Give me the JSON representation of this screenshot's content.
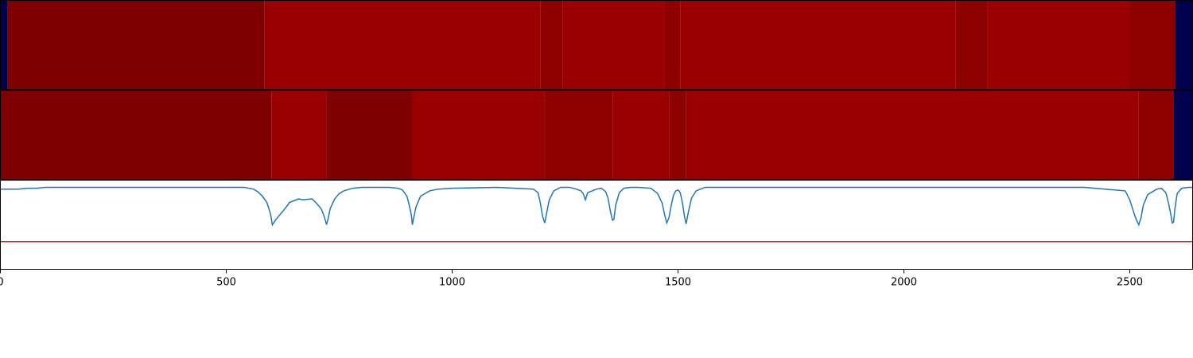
{
  "chart_data": {
    "type": "heatmap",
    "title": "",
    "xlabel": "",
    "ylabel": "",
    "xlim": [
      0,
      2640
    ],
    "x_ticks": [
      0,
      500,
      1000,
      1500,
      2000,
      2500
    ],
    "x_tick_labels": [
      "0",
      "500",
      "1000",
      "1500",
      "2000",
      "2500"
    ],
    "grid": false,
    "colors": {
      "dark_red": "#7f0000",
      "red": "#9b0000",
      "mid_red": "#8c0000",
      "navy": "#00004c",
      "line": "#1f77b4",
      "threshold": "#d62728"
    },
    "track1_segments": [
      {
        "start": 0,
        "end": 15,
        "color": "navy"
      },
      {
        "start": 15,
        "end": 585,
        "color": "dark_red"
      },
      {
        "start": 585,
        "end": 1195,
        "color": "red"
      },
      {
        "start": 1195,
        "end": 1245,
        "color": "mid_red"
      },
      {
        "start": 1245,
        "end": 1470,
        "color": "red"
      },
      {
        "start": 1470,
        "end": 1505,
        "color": "mid_red"
      },
      {
        "start": 1505,
        "end": 2115,
        "color": "red"
      },
      {
        "start": 2115,
        "end": 2185,
        "color": "mid_red"
      },
      {
        "start": 2185,
        "end": 2500,
        "color": "red"
      },
      {
        "start": 2500,
        "end": 2600,
        "color": "mid_red"
      },
      {
        "start": 2600,
        "end": 2640,
        "color": "navy"
      }
    ],
    "track2_segments": [
      {
        "start": 0,
        "end": 600,
        "color": "dark_red"
      },
      {
        "start": 600,
        "end": 722,
        "color": "red"
      },
      {
        "start": 722,
        "end": 912,
        "color": "dark_red"
      },
      {
        "start": 912,
        "end": 1205,
        "color": "red"
      },
      {
        "start": 1205,
        "end": 1355,
        "color": "mid_red"
      },
      {
        "start": 1355,
        "end": 1480,
        "color": "red"
      },
      {
        "start": 1480,
        "end": 1518,
        "color": "mid_red"
      },
      {
        "start": 1518,
        "end": 2520,
        "color": "red"
      },
      {
        "start": 2520,
        "end": 2597,
        "color": "mid_red"
      },
      {
        "start": 2597,
        "end": 2640,
        "color": "navy"
      }
    ],
    "signal_ylim": [
      0,
      1
    ],
    "threshold": 0.31,
    "signal": {
      "x": [
        0,
        40,
        60,
        80,
        100,
        200,
        300,
        540,
        560,
        570,
        580,
        590,
        598,
        602,
        610,
        620,
        630,
        640,
        650,
        660,
        670,
        690,
        700,
        710,
        715,
        720,
        722,
        725,
        730,
        740,
        750,
        760,
        780,
        800,
        820,
        840,
        860,
        880,
        890,
        900,
        905,
        910,
        912,
        915,
        920,
        930,
        950,
        970,
        1000,
        1100,
        1180,
        1190,
        1195,
        1200,
        1205,
        1208,
        1215,
        1225,
        1240,
        1260,
        1275,
        1285,
        1290,
        1295,
        1300,
        1310,
        1320,
        1330,
        1340,
        1345,
        1350,
        1355,
        1358,
        1362,
        1370,
        1380,
        1395,
        1410,
        1440,
        1455,
        1465,
        1470,
        1475,
        1480,
        1485,
        1490,
        1495,
        1500,
        1505,
        1510,
        1514,
        1518,
        1522,
        1530,
        1540,
        1560,
        1600,
        2000,
        2400,
        2490,
        2500,
        2510,
        2515,
        2520,
        2525,
        2530,
        2540,
        2560,
        2570,
        2580,
        2585,
        2590,
        2594,
        2597,
        2600,
        2605,
        2615,
        2630,
        2640
      ],
      "y": [
        0.9,
        0.9,
        0.91,
        0.91,
        0.92,
        0.92,
        0.92,
        0.92,
        0.9,
        0.87,
        0.82,
        0.75,
        0.62,
        0.5,
        0.56,
        0.62,
        0.68,
        0.75,
        0.77,
        0.79,
        0.78,
        0.79,
        0.74,
        0.68,
        0.62,
        0.54,
        0.5,
        0.56,
        0.68,
        0.79,
        0.85,
        0.88,
        0.91,
        0.92,
        0.92,
        0.92,
        0.92,
        0.91,
        0.89,
        0.82,
        0.72,
        0.6,
        0.5,
        0.58,
        0.7,
        0.82,
        0.88,
        0.9,
        0.91,
        0.92,
        0.9,
        0.86,
        0.75,
        0.6,
        0.52,
        0.6,
        0.78,
        0.88,
        0.92,
        0.92,
        0.9,
        0.88,
        0.85,
        0.78,
        0.86,
        0.88,
        0.9,
        0.91,
        0.87,
        0.8,
        0.66,
        0.55,
        0.56,
        0.72,
        0.86,
        0.91,
        0.92,
        0.92,
        0.91,
        0.85,
        0.74,
        0.62,
        0.52,
        0.58,
        0.72,
        0.83,
        0.88,
        0.89,
        0.86,
        0.74,
        0.6,
        0.51,
        0.62,
        0.8,
        0.88,
        0.92,
        0.92,
        0.92,
        0.92,
        0.88,
        0.78,
        0.62,
        0.55,
        0.5,
        0.58,
        0.72,
        0.84,
        0.9,
        0.91,
        0.86,
        0.76,
        0.64,
        0.52,
        0.53,
        0.68,
        0.85,
        0.91,
        0.92,
        0.92
      ]
    }
  }
}
